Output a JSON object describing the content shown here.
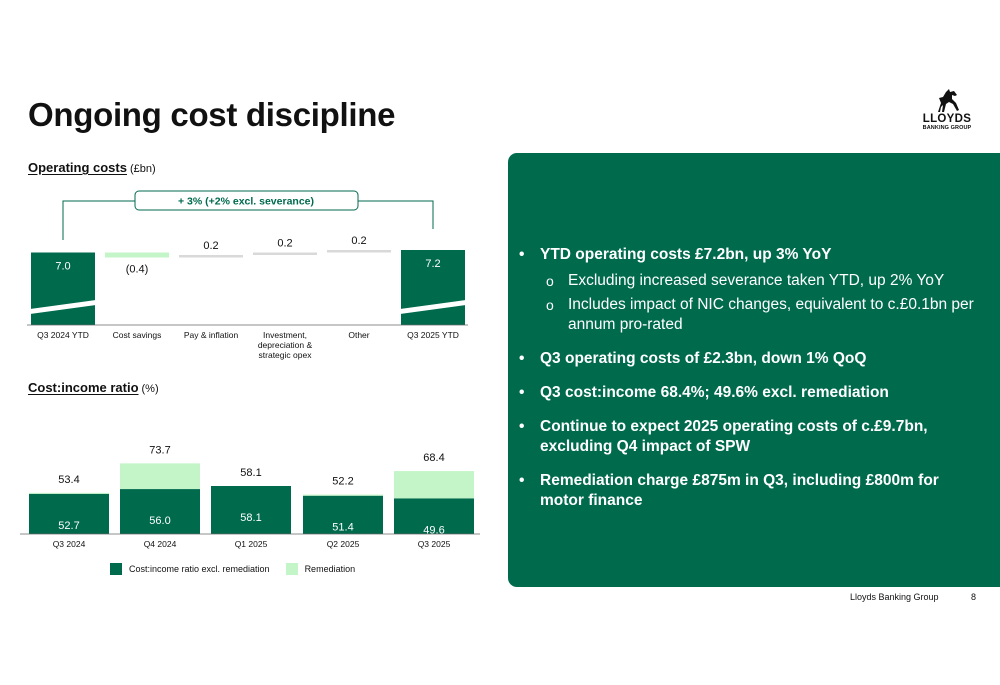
{
  "title": "Ongoing cost discipline",
  "logo": {
    "word": "LLOYDS",
    "sub": "BANKING GROUP"
  },
  "operating_costs": {
    "title": "Operating costs",
    "unit": "(£bn)",
    "annotation": "+ 3% (+2% excl. severance)"
  },
  "cost_income": {
    "title": "Cost:income ratio",
    "unit": "(%)"
  },
  "chart_data": [
    {
      "type": "bar",
      "subtype": "waterfall",
      "title": "Operating costs",
      "unit": "£bn",
      "categories": [
        "Q3 2024 YTD",
        "Cost savings",
        "Pay & inflation",
        "Investment, depreciation & strategic opex",
        "Other",
        "Q3 2025 YTD"
      ],
      "values": [
        7.0,
        -0.4,
        0.2,
        0.2,
        0.2,
        7.2
      ],
      "labels": [
        "7.0",
        "(0.4)",
        "0.2",
        "0.2",
        "0.2",
        "7.2"
      ],
      "annotation": "+ 3% (+2% excl. severance)",
      "colors": {
        "total": "#006a4d",
        "decrease": "#c4f5c9",
        "increase": "#d9d9d9"
      }
    },
    {
      "type": "bar",
      "subtype": "stacked",
      "title": "Cost:income ratio",
      "unit": "%",
      "categories": [
        "Q3 2024",
        "Q4 2024",
        "Q1 2025",
        "Q2 2025",
        "Q3 2025"
      ],
      "series": [
        {
          "name": "Cost:income ratio excl. remediation",
          "values": [
            52.7,
            56.0,
            58.1,
            51.4,
            49.6
          ],
          "color": "#006a4d"
        },
        {
          "name": "Remediation",
          "values": [
            0.7,
            17.7,
            0.0,
            0.8,
            18.8
          ],
          "color": "#c4f5c9"
        }
      ],
      "totals": [
        53.4,
        73.7,
        58.1,
        52.2,
        68.4
      ],
      "legend": "bottom"
    }
  ],
  "bullets": [
    {
      "text": "YTD operating costs £7.2bn, up 3% YoY",
      "sub": [
        "Excluding increased severance taken YTD, up 2% YoY",
        "Includes impact of NIC changes, equivalent to c.£0.1bn per annum pro-rated"
      ]
    },
    {
      "text": "Q3 operating costs of £2.3bn, down 1% QoQ",
      "sub": []
    },
    {
      "text": "Q3 cost:income 68.4%; 49.6% excl. remediation",
      "sub": []
    },
    {
      "text": "Continue to expect 2025 operating costs of c.£9.7bn, excluding Q4 impact of SPW",
      "sub": []
    },
    {
      "text": "Remediation charge £875m in Q3, including £800m for motor finance",
      "sub": []
    }
  ],
  "bullet_symbol": "•",
  "sub_bullet_symbol": "o",
  "footer": {
    "text": "Lloyds Banking Group",
    "page": "8"
  }
}
